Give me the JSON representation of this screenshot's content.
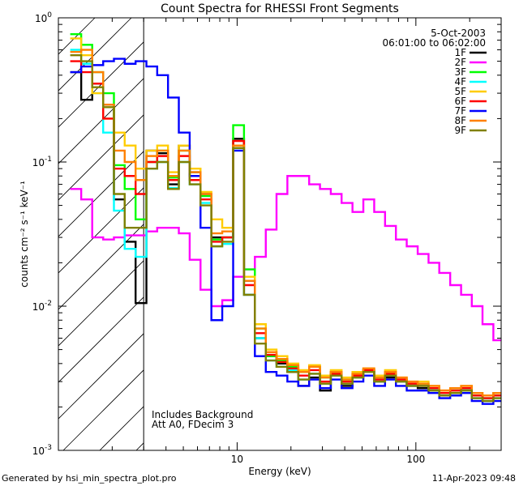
{
  "chart_data": {
    "type": "line",
    "title": "Count Spectra for RHESSI Front Segments",
    "xlabel": "Energy (keV)",
    "ylabel": "counts cm⁻² s⁻¹ keV⁻¹",
    "xscale": "log",
    "yscale": "log",
    "xlim": [
      1.0,
      300.0
    ],
    "ylim": [
      0.001,
      1.0
    ],
    "x_ticks": [
      {
        "value": 10,
        "label": "10"
      },
      {
        "value": 100,
        "label": "100"
      }
    ],
    "y_ticks": [
      {
        "value": 0.001,
        "base": "10",
        "exp": "-3"
      },
      {
        "value": 0.01,
        "base": "10",
        "exp": "-2"
      },
      {
        "value": 0.1,
        "base": "10",
        "exp": "-1"
      },
      {
        "value": 1,
        "base": "10",
        "exp": "0"
      }
    ],
    "date": "5-Oct-2003",
    "time_range": "06:01:00 to 06:02:00",
    "threshold_energy": 3.0,
    "annotations": [
      "Includes Background",
      "Att A0, FDecim 3"
    ],
    "legend_position": "top-right",
    "series": [
      {
        "name": "1F",
        "color": "#000000",
        "x": [
          1.25,
          1.44,
          1.66,
          1.91,
          2.19,
          2.52,
          2.9,
          3.33,
          3.83,
          4.4,
          5.06,
          5.82,
          6.69,
          7.7,
          8.85,
          10.2,
          11.7,
          13.5,
          15.5,
          17.8,
          20.5,
          23.6,
          27.1,
          31.2,
          35.8,
          41.2,
          47.4,
          54.5,
          62.7,
          72.1,
          82.9,
          95.3,
          110,
          126,
          145,
          167,
          192,
          220,
          253,
          291
        ],
        "y": [
          0.42,
          0.27,
          0.35,
          0.25,
          0.055,
          0.028,
          0.0105,
          0.12,
          0.115,
          0.07,
          0.13,
          0.085,
          0.06,
          0.03,
          0.03,
          0.145,
          0.012,
          0.006,
          0.0045,
          0.004,
          0.0035,
          0.0028,
          0.0032,
          0.0026,
          0.0035,
          0.0028,
          0.0032,
          0.0036,
          0.003,
          0.0032,
          0.003,
          0.0028,
          0.0027,
          0.0026,
          0.0024,
          0.0025,
          0.0026,
          0.0024,
          0.0022,
          0.0025
        ]
      },
      {
        "name": "2F",
        "color": "#ff00ff",
        "x": [
          1.25,
          1.44,
          1.66,
          1.91,
          2.19,
          2.52,
          2.9,
          3.33,
          3.83,
          4.4,
          5.06,
          5.82,
          6.69,
          7.7,
          8.85,
          10.2,
          11.7,
          13.5,
          15.5,
          17.8,
          20.5,
          23.6,
          27.1,
          31.2,
          35.8,
          41.2,
          47.4,
          54.5,
          62.7,
          72.1,
          82.9,
          95.3,
          110,
          126,
          145,
          167,
          192,
          220,
          253,
          291
        ],
        "y": [
          0.065,
          0.055,
          0.03,
          0.029,
          0.03,
          0.031,
          0.031,
          0.033,
          0.035,
          0.035,
          0.032,
          0.021,
          0.013,
          0.01,
          0.011,
          0.016,
          0.018,
          0.022,
          0.034,
          0.06,
          0.08,
          0.08,
          0.07,
          0.065,
          0.06,
          0.052,
          0.045,
          0.055,
          0.045,
          0.036,
          0.029,
          0.026,
          0.023,
          0.02,
          0.017,
          0.014,
          0.012,
          0.01,
          0.0075,
          0.0058
        ]
      },
      {
        "name": "3F",
        "color": "#00ff00",
        "x": [
          1.25,
          1.44,
          1.66,
          1.91,
          2.19,
          2.52,
          2.9,
          3.33,
          3.83,
          4.4,
          5.06,
          5.82,
          6.69,
          7.7,
          8.85,
          10.2,
          11.7,
          13.5,
          15.5,
          17.8,
          20.5,
          23.6,
          27.1,
          31.2,
          35.8,
          41.2,
          47.4,
          54.5,
          62.7,
          72.1,
          82.9,
          95.3,
          110,
          126,
          145,
          167,
          192,
          220,
          253,
          291
        ],
        "y": [
          0.77,
          0.65,
          0.42,
          0.3,
          0.095,
          0.065,
          0.04,
          0.1,
          0.12,
          0.078,
          0.12,
          0.08,
          0.058,
          0.029,
          0.03,
          0.18,
          0.018,
          0.007,
          0.0045,
          0.0042,
          0.0038,
          0.0035,
          0.0038,
          0.0032,
          0.0034,
          0.0031,
          0.0034,
          0.0036,
          0.0032,
          0.0035,
          0.0031,
          0.0029,
          0.0029,
          0.0027,
          0.0025,
          0.0026,
          0.0027,
          0.0024,
          0.0023,
          0.0024
        ]
      },
      {
        "name": "4F",
        "color": "#00ffff",
        "x": [
          1.25,
          1.44,
          1.66,
          1.91,
          2.19,
          2.52,
          2.9,
          3.33,
          3.83,
          4.4,
          5.06,
          5.82,
          6.69,
          7.7,
          8.85,
          10.2,
          11.7,
          13.5,
          15.5,
          17.8,
          20.5,
          23.6,
          27.1,
          31.2,
          35.8,
          41.2,
          47.4,
          54.5,
          62.7,
          72.1,
          82.9,
          95.3,
          110,
          126,
          145,
          167,
          192,
          220,
          253,
          291
        ],
        "y": [
          0.6,
          0.48,
          0.3,
          0.16,
          0.046,
          0.025,
          0.022,
          0.09,
          0.1,
          0.066,
          0.1,
          0.07,
          0.052,
          0.026,
          0.027,
          0.12,
          0.012,
          0.006,
          0.0042,
          0.0038,
          0.0036,
          0.0031,
          0.0034,
          0.0029,
          0.0033,
          0.0029,
          0.0032,
          0.0035,
          0.003,
          0.0033,
          0.003,
          0.0028,
          0.0028,
          0.0026,
          0.0024,
          0.0025,
          0.0026,
          0.0023,
          0.0022,
          0.0023
        ]
      },
      {
        "name": "5F",
        "color": "#ffcc00",
        "x": [
          1.25,
          1.44,
          1.66,
          1.91,
          2.19,
          2.52,
          2.9,
          3.33,
          3.83,
          4.4,
          5.06,
          5.82,
          6.69,
          7.7,
          8.85,
          10.2,
          11.7,
          13.5,
          15.5,
          17.8,
          20.5,
          23.6,
          27.1,
          31.2,
          35.8,
          41.2,
          47.4,
          54.5,
          62.7,
          72.1,
          82.9,
          95.3,
          110,
          126,
          145,
          167,
          192,
          220,
          253,
          291
        ],
        "y": [
          0.72,
          0.55,
          0.3,
          0.2,
          0.16,
          0.13,
          0.09,
          0.12,
          0.13,
          0.085,
          0.13,
          0.09,
          0.062,
          0.04,
          0.035,
          0.13,
          0.016,
          0.0075,
          0.005,
          0.0045,
          0.004,
          0.0036,
          0.0039,
          0.0033,
          0.0036,
          0.0032,
          0.0035,
          0.0037,
          0.0033,
          0.0036,
          0.0032,
          0.003,
          0.003,
          0.0028,
          0.0026,
          0.0027,
          0.0028,
          0.0025,
          0.0024,
          0.0025
        ]
      },
      {
        "name": "6F",
        "color": "#ff0000",
        "x": [
          1.25,
          1.44,
          1.66,
          1.91,
          2.19,
          2.52,
          2.9,
          3.33,
          3.83,
          4.4,
          5.06,
          5.82,
          6.69,
          7.7,
          8.85,
          10.2,
          11.7,
          13.5,
          15.5,
          17.8,
          20.5,
          23.6,
          27.1,
          31.2,
          35.8,
          41.2,
          47.4,
          54.5,
          62.7,
          72.1,
          82.9,
          95.3,
          110,
          126,
          145,
          167,
          192,
          220,
          253,
          291
        ],
        "y": [
          0.5,
          0.42,
          0.35,
          0.2,
          0.09,
          0.08,
          0.06,
          0.1,
          0.11,
          0.075,
          0.11,
          0.075,
          0.055,
          0.028,
          0.03,
          0.14,
          0.014,
          0.0065,
          0.0046,
          0.0041,
          0.0037,
          0.0033,
          0.0036,
          0.003,
          0.0034,
          0.003,
          0.0033,
          0.0036,
          0.0031,
          0.0034,
          0.0031,
          0.0029,
          0.0028,
          0.0027,
          0.0025,
          0.0026,
          0.0027,
          0.0024,
          0.0023,
          0.0024
        ]
      },
      {
        "name": "7F",
        "color": "#0000ff",
        "x": [
          1.25,
          1.44,
          1.66,
          1.91,
          2.19,
          2.52,
          2.9,
          3.33,
          3.83,
          4.4,
          5.06,
          5.82,
          6.69,
          7.7,
          8.85,
          10.2,
          11.7,
          13.5,
          15.5,
          17.8,
          20.5,
          23.6,
          27.1,
          31.2,
          35.8,
          41.2,
          47.4,
          54.5,
          62.7,
          72.1,
          82.9,
          95.3,
          110,
          126,
          145,
          167,
          192,
          220,
          253,
          291
        ],
        "y": [
          0.42,
          0.46,
          0.47,
          0.5,
          0.52,
          0.48,
          0.5,
          0.46,
          0.4,
          0.28,
          0.16,
          0.08,
          0.035,
          0.008,
          0.01,
          0.12,
          0.015,
          0.0045,
          0.0035,
          0.0033,
          0.003,
          0.0028,
          0.0031,
          0.0027,
          0.0031,
          0.0027,
          0.003,
          0.0033,
          0.0028,
          0.0031,
          0.0028,
          0.0026,
          0.0026,
          0.0025,
          0.0023,
          0.0024,
          0.0025,
          0.0022,
          0.0021,
          0.0022
        ]
      },
      {
        "name": "8F",
        "color": "#ff8000",
        "x": [
          1.25,
          1.44,
          1.66,
          1.91,
          2.19,
          2.52,
          2.9,
          3.33,
          3.83,
          4.4,
          5.06,
          5.82,
          6.69,
          7.7,
          8.85,
          10.2,
          11.7,
          13.5,
          15.5,
          17.8,
          20.5,
          23.6,
          27.1,
          31.2,
          35.8,
          41.2,
          47.4,
          54.5,
          62.7,
          72.1,
          82.9,
          95.3,
          110,
          126,
          145,
          167,
          192,
          220,
          253,
          291
        ],
        "y": [
          0.58,
          0.6,
          0.42,
          0.25,
          0.12,
          0.1,
          0.075,
          0.11,
          0.12,
          0.08,
          0.12,
          0.085,
          0.06,
          0.032,
          0.033,
          0.13,
          0.015,
          0.007,
          0.0048,
          0.0043,
          0.0039,
          0.0035,
          0.0038,
          0.0032,
          0.0035,
          0.0031,
          0.0034,
          0.0037,
          0.0032,
          0.0035,
          0.0032,
          0.003,
          0.0029,
          0.0028,
          0.0026,
          0.0027,
          0.0028,
          0.0025,
          0.0024,
          0.0025
        ]
      },
      {
        "name": "9F",
        "color": "#808000",
        "x": [
          1.25,
          1.44,
          1.66,
          1.91,
          2.19,
          2.52,
          2.9,
          3.33,
          3.83,
          4.4,
          5.06,
          5.82,
          6.69,
          7.7,
          8.85,
          10.2,
          11.7,
          13.5,
          15.5,
          17.8,
          20.5,
          23.6,
          27.1,
          31.2,
          35.8,
          41.2,
          47.4,
          54.5,
          62.7,
          72.1,
          82.9,
          95.3,
          110,
          126,
          145,
          167,
          192,
          220,
          253,
          291
        ],
        "y": [
          0.55,
          0.5,
          0.33,
          0.24,
          0.06,
          0.035,
          0.035,
          0.09,
          0.1,
          0.065,
          0.1,
          0.07,
          0.05,
          0.026,
          0.028,
          0.125,
          0.012,
          0.0055,
          0.0042,
          0.0038,
          0.0035,
          0.0031,
          0.0034,
          0.0029,
          0.0033,
          0.0029,
          0.0032,
          0.0035,
          0.003,
          0.0033,
          0.003,
          0.0028,
          0.0028,
          0.0026,
          0.0024,
          0.0025,
          0.0026,
          0.0023,
          0.0022,
          0.0023
        ]
      }
    ]
  },
  "footer": {
    "generated_by": "Generated by hsi_min_spectra_plot.pro",
    "timestamp": "11-Apr-2023 09:48"
  }
}
